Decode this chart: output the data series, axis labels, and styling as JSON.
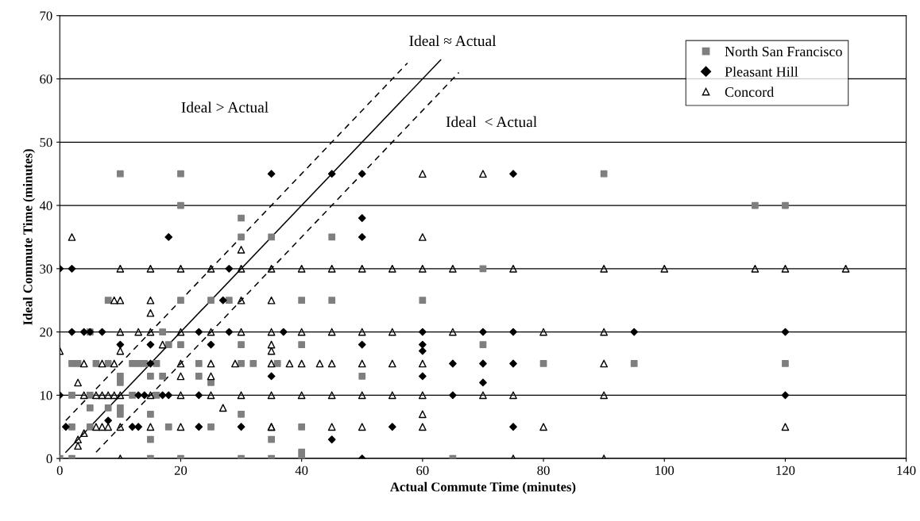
{
  "chart_data": {
    "type": "scatter",
    "xlabel": "Actual Commute Time (minutes)",
    "ylabel": "Ideal Commute Time (minutes)",
    "xlim": [
      0,
      140
    ],
    "xticks": [
      0,
      20,
      40,
      60,
      80,
      100,
      120,
      140
    ],
    "ylim": [
      0,
      70
    ],
    "yticks": [
      0,
      10,
      20,
      30,
      40,
      50,
      60,
      70
    ],
    "grid": "y",
    "legend": "top right",
    "annotations": [
      "Ideal ≈ Actual",
      "Ideal > Actual",
      "Ideal  < Actual"
    ],
    "series": [
      {
        "name": "North San Francisco",
        "color": "#7f7f7f",
        "marker": "square",
        "x": [
          0,
          2,
          15,
          20,
          30,
          35,
          40,
          40,
          65,
          15,
          35,
          2,
          5,
          18,
          25,
          40,
          5,
          8,
          10,
          10,
          15,
          30,
          2,
          5,
          12,
          16,
          10,
          10,
          15,
          17,
          23,
          25,
          50,
          18,
          20,
          30,
          40,
          70,
          2,
          3,
          6,
          8,
          12,
          13,
          14,
          16,
          23,
          30,
          32,
          36,
          80,
          95,
          120,
          5,
          17,
          8,
          20,
          25,
          28,
          40,
          45,
          60,
          70,
          10,
          20,
          90,
          20,
          115,
          120,
          30,
          30,
          35,
          45
        ],
        "values": [
          0,
          0,
          0,
          0,
          0,
          0,
          0,
          1,
          0,
          3,
          3,
          5,
          5,
          5,
          5,
          5,
          8,
          8,
          8,
          7,
          7,
          7,
          10,
          10,
          10,
          10,
          13,
          12,
          13,
          13,
          13,
          12,
          13,
          18,
          18,
          18,
          18,
          18,
          15,
          15,
          15,
          15,
          15,
          15,
          15,
          15,
          15,
          15,
          15,
          15,
          15,
          15,
          15,
          20,
          20,
          25,
          25,
          25,
          25,
          25,
          25,
          25,
          30,
          45,
          45,
          45,
          40,
          40,
          40,
          38,
          35,
          35,
          35
        ]
      },
      {
        "name": "Pleasant Hill",
        "color": "#000000",
        "marker": "diamond",
        "x": [
          50,
          45,
          1,
          12,
          13,
          23,
          30,
          55,
          75,
          8,
          0,
          13,
          14,
          17,
          18,
          23,
          65,
          120,
          35,
          60,
          70,
          10,
          15,
          25,
          50,
          60,
          60,
          15,
          65,
          70,
          75,
          2,
          4,
          5,
          7,
          23,
          28,
          37,
          60,
          70,
          75,
          95,
          120,
          27,
          0,
          2,
          28,
          35,
          45,
          50,
          75,
          18,
          50,
          50
        ],
        "values": [
          0,
          3,
          5,
          5,
          5,
          5,
          5,
          5,
          5,
          6,
          10,
          10,
          10,
          10,
          10,
          10,
          10,
          10,
          13,
          13,
          12,
          18,
          18,
          18,
          18,
          18,
          17,
          15,
          15,
          15,
          15,
          20,
          20,
          20,
          20,
          20,
          20,
          20,
          20,
          20,
          20,
          20,
          20,
          25,
          30,
          30,
          30,
          45,
          45,
          45,
          45,
          35,
          38,
          35
        ]
      },
      {
        "name": "Concord",
        "color": "#000000",
        "marker": "triangle",
        "x": [
          10,
          75,
          90,
          3,
          3,
          4,
          6,
          7,
          8,
          10,
          15,
          20,
          35,
          35,
          45,
          50,
          60,
          80,
          120,
          27,
          60,
          4,
          6,
          7,
          8,
          9,
          10,
          15,
          20,
          25,
          30,
          35,
          40,
          45,
          50,
          55,
          60,
          70,
          75,
          90,
          3,
          20,
          25,
          0,
          10,
          17,
          35,
          35,
          4,
          7,
          9,
          20,
          25,
          29,
          35,
          38,
          40,
          43,
          45,
          50,
          55,
          60,
          90,
          10,
          13,
          15,
          20,
          25,
          30,
          35,
          40,
          45,
          50,
          55,
          65,
          80,
          90,
          15,
          9,
          10,
          15,
          30,
          35,
          10,
          15,
          20,
          25,
          30,
          35,
          40,
          45,
          50,
          55,
          60,
          65,
          75,
          90,
          100,
          115,
          120,
          130,
          30,
          2,
          60,
          60,
          70
        ],
        "values": [
          0,
          0,
          0,
          2,
          3,
          4,
          5,
          5,
          5,
          5,
          5,
          5,
          5,
          5,
          5,
          5,
          5,
          5,
          5,
          8,
          7,
          10,
          10,
          10,
          10,
          10,
          10,
          10,
          10,
          10,
          10,
          10,
          10,
          10,
          10,
          10,
          10,
          10,
          10,
          10,
          12,
          13,
          13,
          17,
          17,
          18,
          18,
          17,
          15,
          15,
          15,
          15,
          15,
          15,
          15,
          15,
          15,
          15,
          15,
          15,
          15,
          15,
          15,
          20,
          20,
          20,
          20,
          20,
          20,
          20,
          20,
          20,
          20,
          20,
          20,
          20,
          20,
          23,
          25,
          25,
          25,
          25,
          25,
          30,
          30,
          30,
          30,
          30,
          30,
          30,
          30,
          30,
          30,
          30,
          30,
          30,
          30,
          30,
          30,
          30,
          30,
          33,
          35,
          35,
          45,
          45
        ]
      },
      {
        "type": "line",
        "color": "#000000",
        "line_style": "solid",
        "x": [
          1,
          63
        ],
        "values": [
          1,
          63
        ]
      },
      {
        "type": "line",
        "color": "#000000",
        "line_style": "dashed",
        "x": [
          1,
          57.5
        ],
        "values": [
          6,
          62.5
        ]
      },
      {
        "type": "line",
        "color": "#000000",
        "line_style": "dashed",
        "x": [
          6,
          66
        ],
        "values": [
          1,
          61
        ]
      }
    ]
  }
}
